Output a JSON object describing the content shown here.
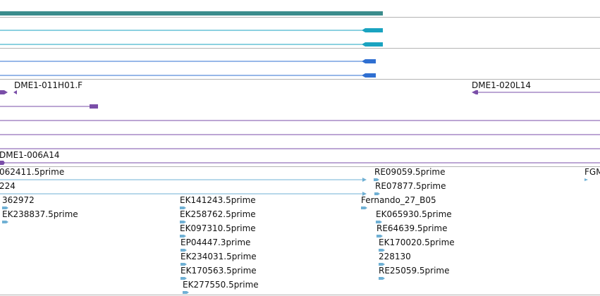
{
  "colors": {
    "gene_bar": "#3b8c8c",
    "transcript_cyan": "#1aa3c0",
    "transcript_blue": "#2f6fd1",
    "clone_purple": "#7a4ea8",
    "est_light_blue": "#6fb0d4",
    "separator": "#b4b4b4"
  },
  "clone_track": {
    "left_label": "DME1-011H01.F",
    "right_label": "DME1-020L14",
    "bottom_label": "DME1-006A14"
  },
  "est_track": {
    "col_left": [
      "062411.5prime",
      "224",
      "362972",
      "EK238837.5prime"
    ],
    "col_mid": [
      "EK141243.5prime",
      "EK258762.5prime",
      "EK097310.5prime",
      "EP04447.3prime",
      "EK234031.5prime",
      "EK170563.5prime",
      "EK277550.5prime"
    ],
    "col_right": [
      "RE09059.5prime",
      "RE07877.5prime",
      "Fernando_27_B05",
      "EK065930.5prime",
      "RE64639.5prime",
      "EK170020.5prime",
      "228130",
      "RE25059.5prime"
    ],
    "col_far_right": [
      "FGM"
    ]
  }
}
